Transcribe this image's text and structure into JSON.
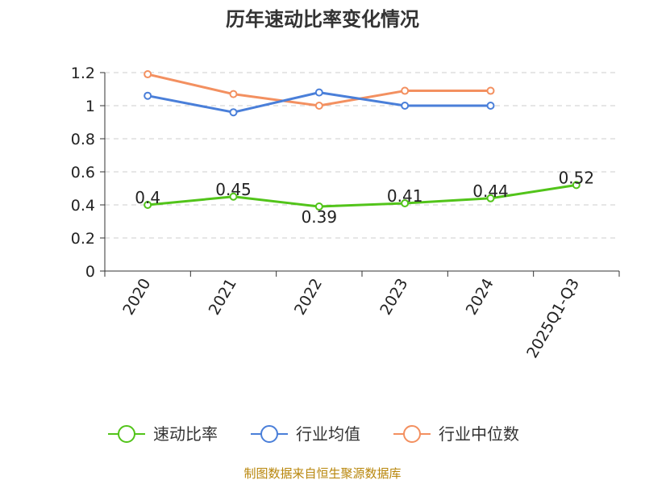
{
  "chart_data": {
    "type": "line",
    "title": "历年速动比率变化情况",
    "categories": [
      "2020",
      "2021",
      "2022",
      "2023",
      "2024",
      "2025Q1-Q3"
    ],
    "ylim": [
      0,
      1.2
    ],
    "yticks": [
      "0",
      "0.2",
      "0.4",
      "0.6",
      "0.8",
      "1",
      "1.2"
    ],
    "grid": true,
    "legend_position": "bottom",
    "series": [
      {
        "name": "速动比率",
        "color": "#52c41a",
        "values": [
          0.4,
          0.45,
          0.39,
          0.41,
          0.44,
          0.52
        ],
        "labels": [
          "0.4",
          "0.45",
          "0.39",
          "0.41",
          "0.44",
          "0.52"
        ]
      },
      {
        "name": "行业均值",
        "color": "#4a7fd9",
        "values": [
          1.06,
          0.96,
          1.08,
          1.0,
          1.0,
          null
        ]
      },
      {
        "name": "行业中位数",
        "color": "#f39060",
        "values": [
          1.19,
          1.07,
          1.0,
          1.09,
          1.09,
          null
        ]
      }
    ]
  },
  "source": "制图数据来自恒生聚源数据库"
}
